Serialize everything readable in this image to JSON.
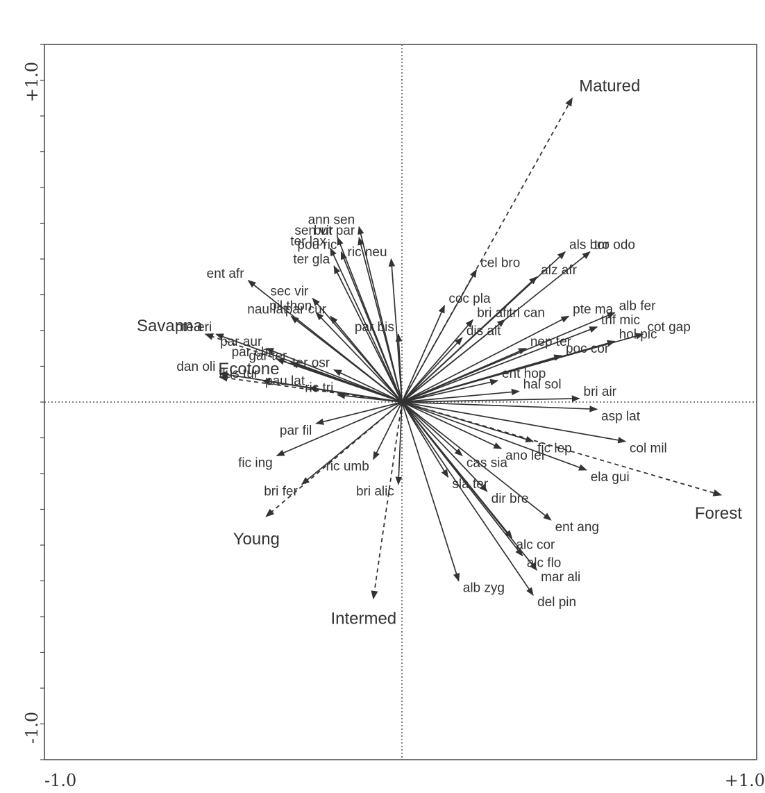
{
  "chart_data": {
    "type": "scatter",
    "title": "",
    "xlabel": "",
    "ylabel": "",
    "xlim": [
      -1.0,
      1.0
    ],
    "ylim": [
      -1.0,
      1.0
    ],
    "grid": false,
    "zero_lines": true,
    "ticks": {
      "x_min": "-1.0",
      "x_max": "+1.0",
      "y_min": "-1.0",
      "y_max": "+1.0"
    },
    "environment_arrows": [
      {
        "label": "Matured",
        "x": 0.48,
        "y": 0.85
      },
      {
        "label": "Savanna",
        "x": -0.55,
        "y": 0.19
      },
      {
        "label": "Ecotone",
        "x": -0.51,
        "y": 0.07
      },
      {
        "label": "Forest",
        "x": 0.9,
        "y": -0.26
      },
      {
        "label": "Young",
        "x": -0.38,
        "y": -0.32
      },
      {
        "label": "Intermed",
        "x": -0.08,
        "y": -0.55
      }
    ],
    "species_arrows": [
      {
        "label": "ann sen",
        "x": -0.12,
        "y": 0.49
      },
      {
        "label": "sen vir",
        "x": -0.18,
        "y": 0.46
      },
      {
        "label": "but par",
        "x": -0.12,
        "y": 0.46
      },
      {
        "label": "ter lax",
        "x": -0.2,
        "y": 0.43
      },
      {
        "label": "ter gla",
        "x": -0.19,
        "y": 0.38
      },
      {
        "label": "pou ric",
        "x": -0.17,
        "y": 0.42
      },
      {
        "label": "ric neu",
        "x": -0.03,
        "y": 0.4
      },
      {
        "label": "ent afr",
        "x": -0.43,
        "y": 0.34
      },
      {
        "label": "sec vir",
        "x": -0.25,
        "y": 0.29
      },
      {
        "label": "pil thon",
        "x": -0.24,
        "y": 0.25
      },
      {
        "label": "par cur",
        "x": -0.2,
        "y": 0.24
      },
      {
        "label": "par bis",
        "x": -0.01,
        "y": 0.19
      },
      {
        "label": "nau lat",
        "x": -0.31,
        "y": 0.24
      },
      {
        "label": "pte eri",
        "x": -0.52,
        "y": 0.19
      },
      {
        "label": "par aur",
        "x": -0.38,
        "y": 0.15
      },
      {
        "label": "par chr",
        "x": -0.35,
        "y": 0.12
      },
      {
        "label": "gar ter",
        "x": -0.31,
        "y": 0.11
      },
      {
        "label": "ter osr",
        "x": -0.19,
        "y": 0.09
      },
      {
        "label": "dan oli",
        "x": -0.51,
        "y": 0.08
      },
      {
        "label": "flus tur",
        "x": -0.39,
        "y": 0.06
      },
      {
        "label": "pau lat",
        "x": -0.26,
        "y": 0.04
      },
      {
        "label": "ric tri",
        "x": -0.18,
        "y": 0.02
      },
      {
        "label": "par fil",
        "x": -0.24,
        "y": -0.06
      },
      {
        "label": "fic ing",
        "x": -0.35,
        "y": -0.15
      },
      {
        "label": "bri fer",
        "x": -0.28,
        "y": -0.23
      },
      {
        "label": "bri alic",
        "x": -0.01,
        "y": -0.23
      },
      {
        "label": "ric umb",
        "x": -0.08,
        "y": -0.16
      },
      {
        "label": "cel bro",
        "x": 0.21,
        "y": 0.37
      },
      {
        "label": "als bor",
        "x": 0.46,
        "y": 0.42
      },
      {
        "label": "tro odo",
        "x": 0.53,
        "y": 0.42
      },
      {
        "label": "alz afr",
        "x": 0.38,
        "y": 0.35
      },
      {
        "label": "coc pla",
        "x": 0.12,
        "y": 0.27
      },
      {
        "label": "bri afr",
        "x": 0.2,
        "y": 0.23
      },
      {
        "label": "tri can",
        "x": 0.29,
        "y": 0.23
      },
      {
        "label": "pte ma",
        "x": 0.47,
        "y": 0.24
      },
      {
        "label": "alb fer",
        "x": 0.6,
        "y": 0.25
      },
      {
        "label": "cot gap",
        "x": 0.68,
        "y": 0.19
      },
      {
        "label": "trif mic",
        "x": 0.55,
        "y": 0.21
      },
      {
        "label": "dis alt",
        "x": 0.17,
        "y": 0.18
      },
      {
        "label": "nep ter",
        "x": 0.35,
        "y": 0.15
      },
      {
        "label": "hol pic",
        "x": 0.6,
        "y": 0.17
      },
      {
        "label": "poc cor",
        "x": 0.45,
        "y": 0.13
      },
      {
        "label": "ent hop",
        "x": 0.27,
        "y": 0.06
      },
      {
        "label": "hal sol",
        "x": 0.33,
        "y": 0.03
      },
      {
        "label": "bri air",
        "x": 0.5,
        "y": 0.01
      },
      {
        "label": "asp lat",
        "x": 0.55,
        "y": -0.02
      },
      {
        "label": "col mil",
        "x": 0.63,
        "y": -0.11
      },
      {
        "label": "fic lep",
        "x": 0.37,
        "y": -0.11
      },
      {
        "label": "ano lei",
        "x": 0.28,
        "y": -0.13
      },
      {
        "label": "cas sia",
        "x": 0.17,
        "y": -0.15
      },
      {
        "label": "ela gui",
        "x": 0.52,
        "y": -0.19
      },
      {
        "label": "sla ter",
        "x": 0.13,
        "y": -0.21
      },
      {
        "label": "dir bre",
        "x": 0.24,
        "y": -0.25
      },
      {
        "label": "ent ang",
        "x": 0.42,
        "y": -0.33
      },
      {
        "label": "alc cor",
        "x": 0.31,
        "y": -0.38
      },
      {
        "label": "alc flo",
        "x": 0.34,
        "y": -0.43
      },
      {
        "label": "mar ali",
        "x": 0.38,
        "y": -0.47
      },
      {
        "label": "alb zyg",
        "x": 0.16,
        "y": -0.5
      },
      {
        "label": "del pin",
        "x": 0.37,
        "y": -0.54
      }
    ],
    "colors": {
      "arrow": "#333333",
      "axis": "#444444",
      "background": "#ffffff"
    }
  }
}
